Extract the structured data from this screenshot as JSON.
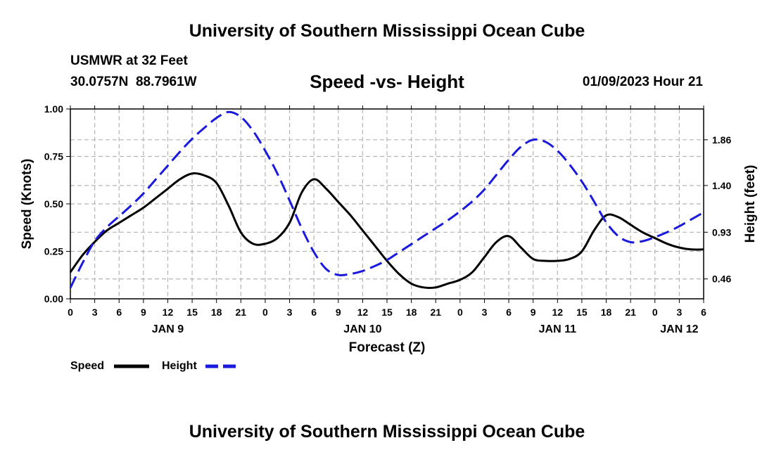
{
  "header": {
    "title": "University of Southern Mississippi Ocean Cube",
    "station": "USMWR at 32 Feet",
    "coords": "30.0757N  88.7961W",
    "chart_title": "Speed -vs- Height",
    "datetime": "01/09/2023 Hour 21"
  },
  "footer": {
    "title": "University of Southern Mississippi Ocean Cube"
  },
  "colors": {
    "speed": "#000000",
    "height": "#1a1adc",
    "grid": "#b4b4b4"
  },
  "chart_data": {
    "type": "line",
    "title": "Speed -vs- Height",
    "xlabel": "Forecast (Z)",
    "ylabel": "Speed (Knots)",
    "y2label": "Height (feet)",
    "x_unit": "hours since JAN 9 00Z",
    "xlim": [
      0,
      78
    ],
    "ylim": [
      0,
      1
    ],
    "y2lim": [
      0.26,
      2.17
    ],
    "x_tick_values": [
      0,
      3,
      6,
      9,
      12,
      15,
      18,
      21,
      24,
      27,
      30,
      33,
      36,
      39,
      42,
      45,
      48,
      51,
      54,
      57,
      60,
      63,
      66,
      69,
      72,
      75,
      78
    ],
    "x_tick_labels": [
      "0",
      "3",
      "6",
      "9",
      "12",
      "15",
      "18",
      "21",
      "0",
      "3",
      "6",
      "9",
      "12",
      "15",
      "18",
      "21",
      "0",
      "3",
      "6",
      "9",
      "12",
      "15",
      "18",
      "21",
      "0",
      "3",
      "6"
    ],
    "day_labels": [
      {
        "label": "JAN 9",
        "x": 12
      },
      {
        "label": "JAN 10",
        "x": 36
      },
      {
        "label": "JAN 11",
        "x": 60
      },
      {
        "label": "JAN 12",
        "x": 75
      }
    ],
    "y_ticks": [
      0.0,
      0.25,
      0.5,
      0.75,
      1.0
    ],
    "y_tick_labels": [
      "0.00",
      "0.25",
      "0.50",
      "0.75",
      "1.00"
    ],
    "y2_ticks": [
      0.46,
      0.93,
      1.4,
      1.86
    ],
    "y2_tick_labels": [
      "0.46",
      "0.93",
      "1.40",
      "1.86"
    ],
    "grid": true,
    "legend_position": "bottom-left",
    "series": [
      {
        "name": "Speed",
        "axis": "left",
        "style": "solid",
        "x": [
          0,
          1.5,
          3,
          4.5,
          6,
          7.5,
          9,
          10.5,
          12,
          13.5,
          15,
          16.5,
          18,
          19.5,
          21,
          22.5,
          24,
          25.5,
          27,
          28.5,
          30,
          31.5,
          33,
          34.5,
          36,
          37.5,
          39,
          40.5,
          42,
          43.5,
          45,
          46.5,
          48,
          49.5,
          51,
          52.5,
          54,
          55.5,
          57,
          58.5,
          60,
          61.5,
          63,
          64.5,
          66,
          67.5,
          69,
          70.5,
          72,
          73.5,
          75,
          76.5,
          78
        ],
        "values": [
          0.14,
          0.23,
          0.3,
          0.36,
          0.4,
          0.44,
          0.48,
          0.53,
          0.58,
          0.63,
          0.66,
          0.65,
          0.61,
          0.49,
          0.35,
          0.29,
          0.29,
          0.32,
          0.4,
          0.56,
          0.63,
          0.58,
          0.51,
          0.44,
          0.36,
          0.28,
          0.2,
          0.13,
          0.08,
          0.06,
          0.06,
          0.08,
          0.1,
          0.14,
          0.22,
          0.3,
          0.33,
          0.27,
          0.21,
          0.2,
          0.2,
          0.21,
          0.25,
          0.36,
          0.44,
          0.43,
          0.39,
          0.35,
          0.32,
          0.29,
          0.27,
          0.26,
          0.26
        ]
      },
      {
        "name": "Height",
        "axis": "right",
        "style": "dashed",
        "x": [
          0,
          1.5,
          3,
          4.5,
          6,
          7.5,
          9,
          10.5,
          12,
          13.5,
          15,
          16.5,
          18,
          19.5,
          21,
          22.5,
          24,
          25.5,
          27,
          28.5,
          30,
          31.5,
          33,
          34.5,
          36,
          37.5,
          39,
          40.5,
          42,
          43.5,
          45,
          46.5,
          48,
          49.5,
          51,
          52.5,
          54,
          55.5,
          57,
          58.5,
          60,
          61.5,
          63,
          64.5,
          66,
          67.5,
          69,
          70.5,
          72,
          73.5,
          75,
          76.5,
          78
        ],
        "values": [
          0.37,
          0.62,
          0.84,
          0.98,
          1.09,
          1.2,
          1.32,
          1.46,
          1.6,
          1.74,
          1.87,
          1.98,
          2.08,
          2.14,
          2.09,
          1.95,
          1.75,
          1.52,
          1.25,
          0.97,
          0.73,
          0.56,
          0.5,
          0.51,
          0.54,
          0.59,
          0.65,
          0.73,
          0.81,
          0.89,
          0.97,
          1.05,
          1.14,
          1.24,
          1.36,
          1.51,
          1.66,
          1.79,
          1.86,
          1.84,
          1.75,
          1.61,
          1.44,
          1.24,
          1.03,
          0.89,
          0.83,
          0.84,
          0.88,
          0.93,
          0.99,
          1.06,
          1.13
        ]
      }
    ],
    "legend": [
      {
        "label": "Speed",
        "series": 0
      },
      {
        "label": "Height",
        "series": 1
      }
    ]
  }
}
